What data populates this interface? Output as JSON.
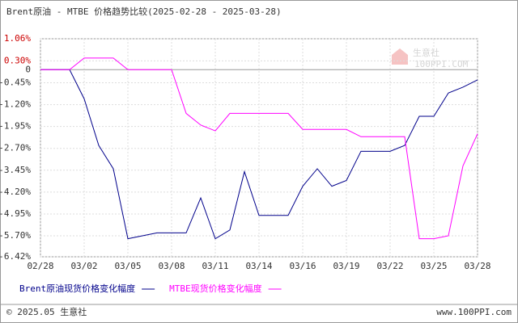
{
  "chart_data": {
    "type": "line",
    "title": "Brent原油 - MTBE 价格趋势比较(2025-02-28 - 2025-03-28)",
    "watermark": [
      "生意社",
      "100PPI.COM"
    ],
    "footer_left": "© 2025.05 生意社",
    "footer_right": "www.100PPI.com",
    "categories": [
      "02/28",
      null,
      null,
      "03/02",
      null,
      null,
      "03/05",
      null,
      null,
      "03/08",
      null,
      null,
      "03/11",
      null,
      null,
      "03/14",
      null,
      null,
      "03/16",
      null,
      null,
      "03/19",
      null,
      null,
      "03/22",
      null,
      null,
      "03/25",
      null,
      null,
      "03/28"
    ],
    "ylim": [
      -6.42,
      1.06
    ],
    "yticks": [
      {
        "value": 1.06,
        "label": "1.06%"
      },
      {
        "value": 0.3,
        "label": "0.30%"
      },
      0,
      {
        "value": -0.45,
        "label": "-0.45%"
      },
      {
        "value": -1.2,
        "label": "-1.20%"
      },
      {
        "value": -1.95,
        "label": "-1.95%"
      },
      {
        "value": -2.7,
        "label": "-2.70%"
      },
      {
        "value": -3.45,
        "label": "-3.45%"
      },
      {
        "value": -4.2,
        "label": "-4.20%"
      },
      {
        "value": -4.95,
        "label": "-4.95%"
      },
      {
        "value": -5.7,
        "label": "-5.70%"
      },
      {
        "value": -6.42,
        "label": "-6.42%"
      }
    ],
    "grid": true,
    "series": [
      {
        "name": "Brent原油现货价格变化幅度",
        "color": "#00008b",
        "values": [
          0,
          0,
          0,
          -1.0,
          -2.6,
          -3.4,
          -5.8,
          -5.7,
          -5.6,
          -5.6,
          -5.6,
          -4.4,
          -5.8,
          -5.5,
          -3.5,
          -5.0,
          -5.0,
          -5.0,
          -4.0,
          -3.4,
          -4.0,
          -3.8,
          -2.8,
          -2.8,
          -2.8,
          -2.6,
          -1.6,
          -1.6,
          -0.8,
          -0.6,
          -0.35
        ]
      },
      {
        "name": "MTBE现货价格变化幅度",
        "color": "#ff00ff",
        "values": [
          0,
          0,
          0,
          0.4,
          0.4,
          0.4,
          0,
          0,
          0,
          0,
          -1.5,
          -1.9,
          -2.1,
          -1.5,
          -1.5,
          -1.5,
          -1.5,
          -1.5,
          -2.05,
          -2.05,
          -2.05,
          -2.05,
          -2.3,
          -2.3,
          -2.3,
          -2.3,
          -5.8,
          -5.8,
          -5.7,
          -3.3,
          -2.2
        ]
      }
    ]
  }
}
